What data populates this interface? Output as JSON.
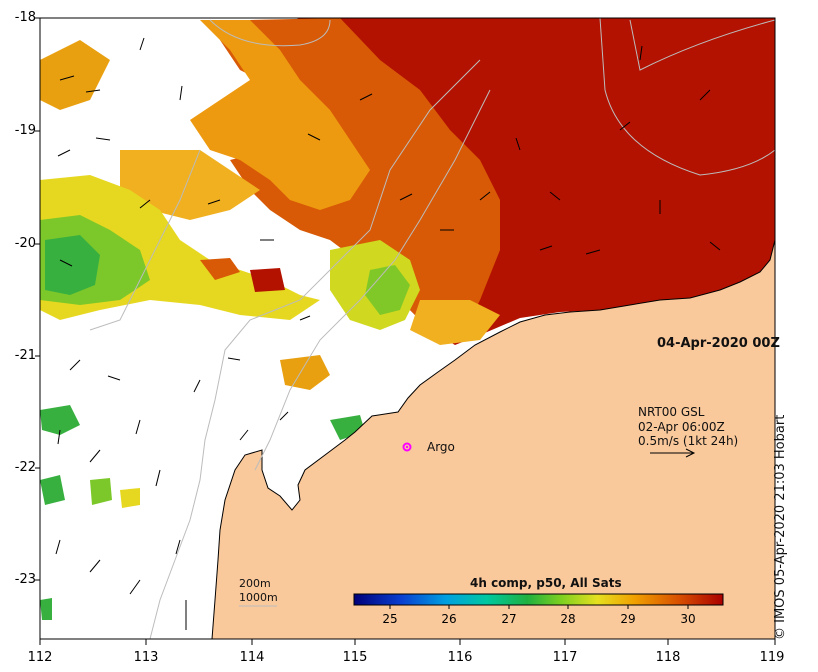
{
  "map": {
    "timestamp": "04-Apr-2020 00Z",
    "current_legend": {
      "source": "NRT00 GSL",
      "time": "02-Apr 06:00Z",
      "scale": "0.5m/s (1kt 24h)"
    },
    "argo_label": "Argo",
    "credit": "© IMOS 05-Apr-2020 21:03 Hobart",
    "depth_contours": [
      "200m",
      "1000m"
    ],
    "lat_ticks": [
      "-18",
      "-19",
      "-20",
      "-21",
      "-22",
      "-23"
    ],
    "lon_ticks": [
      "112",
      "113",
      "114",
      "115",
      "116",
      "117",
      "118",
      "119"
    ],
    "colorbar": {
      "title": "4h comp, p50, All Sats",
      "ticks": [
        "25",
        "26",
        "27",
        "28",
        "29",
        "30"
      ],
      "min": 24.4,
      "max": 30.6
    },
    "colors": {
      "land": "#f9c89b",
      "coast": "#000000",
      "contour": "#bcbcbc",
      "argo_marker": "#ff00ff"
    }
  }
}
